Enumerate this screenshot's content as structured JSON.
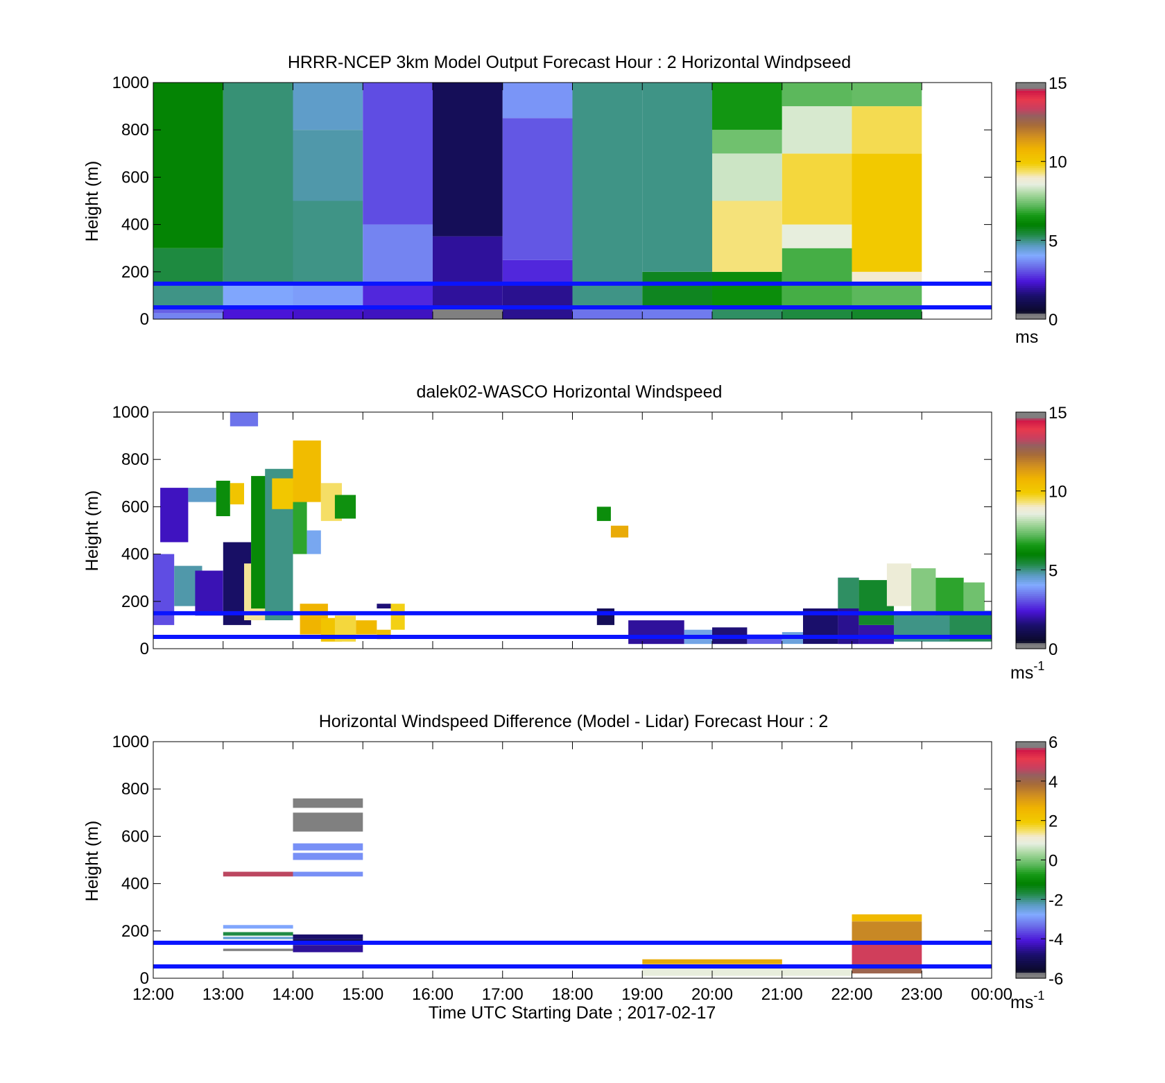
{
  "chart_data": [
    {
      "type": "heatmap",
      "title": "HRRR-NCEP 3km Model Output   Forecast Hour : 2 Horizontal Windpseed",
      "ylabel": "Height (m)",
      "xlabel": "",
      "xlim": [
        12,
        24
      ],
      "ylim": [
        0,
        1000
      ],
      "yticks": [
        "0",
        "200",
        "400",
        "600",
        "800",
        "1000"
      ],
      "colorbar": {
        "min": 0,
        "max": 15,
        "ticks": [
          "0",
          "5",
          "10",
          "15"
        ],
        "unit_base": "ms",
        "unit_sup": ""
      },
      "reference_lines_m": [
        50,
        150
      ],
      "reference_line_color": "#0a14ff",
      "cells": [
        {
          "x0": 12,
          "x1": 13,
          "y0": 0,
          "y1": 25,
          "v": 3.6
        },
        {
          "x0": 12,
          "x1": 13,
          "y0": 25,
          "y1": 50,
          "v": 3.2
        },
        {
          "x0": 12,
          "x1": 13,
          "y0": 50,
          "y1": 150,
          "v": 5.0
        },
        {
          "x0": 12,
          "x1": 13,
          "y0": 150,
          "y1": 300,
          "v": 5.4
        },
        {
          "x0": 12,
          "x1": 13,
          "y0": 300,
          "y1": 1000,
          "v": 6.1
        },
        {
          "x0": 13,
          "x1": 14,
          "y0": 0,
          "y1": 50,
          "v": 2.4
        },
        {
          "x0": 13,
          "x1": 14,
          "y0": 50,
          "y1": 150,
          "v": 4.0
        },
        {
          "x0": 13,
          "x1": 14,
          "y0": 150,
          "y1": 1000,
          "v": 5.1
        },
        {
          "x0": 14,
          "x1": 15,
          "y0": 0,
          "y1": 50,
          "v": 2.3
        },
        {
          "x0": 14,
          "x1": 15,
          "y0": 50,
          "y1": 150,
          "v": 3.9
        },
        {
          "x0": 14,
          "x1": 15,
          "y0": 150,
          "y1": 500,
          "v": 5.0
        },
        {
          "x0": 14,
          "x1": 15,
          "y0": 500,
          "y1": 800,
          "v": 4.8
        },
        {
          "x0": 14,
          "x1": 15,
          "y0": 800,
          "y1": 1000,
          "v": 4.6
        },
        {
          "x0": 15,
          "x1": 16,
          "y0": 0,
          "y1": 50,
          "v": 2.2
        },
        {
          "x0": 15,
          "x1": 16,
          "y0": 50,
          "y1": 150,
          "v": 2.6
        },
        {
          "x0": 15,
          "x1": 16,
          "y0": 150,
          "y1": 400,
          "v": 3.6
        },
        {
          "x0": 15,
          "x1": 16,
          "y0": 400,
          "y1": 1000,
          "v": 3.0
        },
        {
          "x0": 16,
          "x1": 17,
          "y0": 0,
          "y1": 50,
          "v": 0.3
        },
        {
          "x0": 16,
          "x1": 17,
          "y0": 50,
          "y1": 350,
          "v": 1.9
        },
        {
          "x0": 16,
          "x1": 17,
          "y0": 350,
          "y1": 1000,
          "v": 1.2
        },
        {
          "x0": 17,
          "x1": 18,
          "y0": 0,
          "y1": 150,
          "v": 1.8
        },
        {
          "x0": 17,
          "x1": 18,
          "y0": 150,
          "y1": 250,
          "v": 2.6
        },
        {
          "x0": 17,
          "x1": 18,
          "y0": 250,
          "y1": 850,
          "v": 3.1
        },
        {
          "x0": 17,
          "x1": 18,
          "y0": 850,
          "y1": 1000,
          "v": 3.8
        },
        {
          "x0": 18,
          "x1": 19,
          "y0": 0,
          "y1": 50,
          "v": 3.4
        },
        {
          "x0": 18,
          "x1": 19,
          "y0": 50,
          "y1": 1000,
          "v": 5.0
        },
        {
          "x0": 19,
          "x1": 20,
          "y0": 0,
          "y1": 50,
          "v": 3.5
        },
        {
          "x0": 19,
          "x1": 20,
          "y0": 50,
          "y1": 200,
          "v": 5.7
        },
        {
          "x0": 19,
          "x1": 20,
          "y0": 200,
          "y1": 1000,
          "v": 5.0
        },
        {
          "x0": 20,
          "x1": 21,
          "y0": 0,
          "y1": 50,
          "v": 5.2
        },
        {
          "x0": 20,
          "x1": 21,
          "y0": 50,
          "y1": 200,
          "v": 6.3
        },
        {
          "x0": 20,
          "x1": 21,
          "y0": 200,
          "y1": 500,
          "v": 9.3
        },
        {
          "x0": 20,
          "x1": 21,
          "y0": 500,
          "y1": 700,
          "v": 8.3
        },
        {
          "x0": 20,
          "x1": 21,
          "y0": 700,
          "y1": 800,
          "v": 7.4
        },
        {
          "x0": 20,
          "x1": 21,
          "y0": 800,
          "y1": 1000,
          "v": 6.5
        },
        {
          "x0": 21,
          "x1": 22,
          "y0": 0,
          "y1": 50,
          "v": 5.4
        },
        {
          "x0": 21,
          "x1": 22,
          "y0": 50,
          "y1": 300,
          "v": 7.0
        },
        {
          "x0": 21,
          "x1": 22,
          "y0": 300,
          "y1": 400,
          "v": 8.6
        },
        {
          "x0": 21,
          "x1": 22,
          "y0": 400,
          "y1": 700,
          "v": 9.6
        },
        {
          "x0": 21,
          "x1": 22,
          "y0": 700,
          "y1": 900,
          "v": 8.4
        },
        {
          "x0": 21,
          "x1": 22,
          "y0": 900,
          "y1": 1000,
          "v": 7.2
        },
        {
          "x0": 22,
          "x1": 23,
          "y0": 0,
          "y1": 50,
          "v": 5.6
        },
        {
          "x0": 22,
          "x1": 23,
          "y0": 50,
          "y1": 150,
          "v": 7.2
        },
        {
          "x0": 22,
          "x1": 23,
          "y0": 150,
          "y1": 200,
          "v": 9.0
        },
        {
          "x0": 22,
          "x1": 23,
          "y0": 200,
          "y1": 700,
          "v": 10.0
        },
        {
          "x0": 22,
          "x1": 23,
          "y0": 700,
          "y1": 900,
          "v": 9.5
        },
        {
          "x0": 22,
          "x1": 23,
          "y0": 900,
          "y1": 1000,
          "v": 7.3
        }
      ]
    },
    {
      "type": "heatmap",
      "title": "dalek02-WASCO  Horizontal Windspeed",
      "ylabel": "Height (m)",
      "xlabel": "",
      "xlim": [
        12,
        24
      ],
      "ylim": [
        0,
        1000
      ],
      "yticks": [
        "0",
        "200",
        "400",
        "600",
        "800",
        "1000"
      ],
      "colorbar": {
        "min": 0,
        "max": 15,
        "ticks": [
          "0",
          "5",
          "10",
          "15"
        ],
        "unit_base": "ms",
        "unit_sup": "-1"
      },
      "reference_lines_m": [
        50,
        150
      ],
      "reference_line_color": "#0a14ff",
      "cells": [
        {
          "x0": 12.0,
          "x1": 12.3,
          "y0": 100,
          "y1": 400,
          "v": 3.0
        },
        {
          "x0": 12.1,
          "x1": 12.5,
          "y0": 450,
          "y1": 680,
          "v": 2.2
        },
        {
          "x0": 12.3,
          "x1": 12.7,
          "y0": 180,
          "y1": 350,
          "v": 4.8
        },
        {
          "x0": 12.5,
          "x1": 12.9,
          "y0": 620,
          "y1": 680,
          "v": 4.6
        },
        {
          "x0": 12.6,
          "x1": 13.0,
          "y0": 140,
          "y1": 330,
          "v": 2.1
        },
        {
          "x0": 12.9,
          "x1": 13.1,
          "y0": 560,
          "y1": 710,
          "v": 6.3
        },
        {
          "x0": 13.0,
          "x1": 13.4,
          "y0": 100,
          "y1": 450,
          "v": 1.4
        },
        {
          "x0": 13.1,
          "x1": 13.3,
          "y0": 610,
          "y1": 700,
          "v": 10.2
        },
        {
          "x0": 13.1,
          "x1": 13.5,
          "y0": 940,
          "y1": 1000,
          "v": 3.4
        },
        {
          "x0": 13.3,
          "x1": 13.6,
          "y0": 120,
          "y1": 360,
          "v": 9.2
        },
        {
          "x0": 13.4,
          "x1": 13.7,
          "y0": 170,
          "y1": 730,
          "v": 6.2
        },
        {
          "x0": 13.6,
          "x1": 14.0,
          "y0": 120,
          "y1": 760,
          "v": 5.0
        },
        {
          "x0": 13.7,
          "x1": 14.0,
          "y0": 590,
          "y1": 720,
          "v": 10.1
        },
        {
          "x0": 14.0,
          "x1": 14.2,
          "y0": 400,
          "y1": 680,
          "v": 6.8
        },
        {
          "x0": 14.0,
          "x1": 14.4,
          "y0": 620,
          "y1": 880,
          "v": 10.5
        },
        {
          "x0": 14.1,
          "x1": 14.5,
          "y0": 60,
          "y1": 190,
          "v": 10.8
        },
        {
          "x0": 14.4,
          "x1": 14.7,
          "y0": 540,
          "y1": 700,
          "v": 9.4
        },
        {
          "x0": 14.2,
          "x1": 14.4,
          "y0": 400,
          "y1": 500,
          "v": 4.2
        },
        {
          "x0": 14.4,
          "x1": 14.7,
          "y0": 30,
          "y1": 130,
          "v": 10.2
        },
        {
          "x0": 14.6,
          "x1": 14.9,
          "y0": 550,
          "y1": 650,
          "v": 6.4
        },
        {
          "x0": 14.6,
          "x1": 14.9,
          "y0": 30,
          "y1": 140,
          "v": 9.6
        },
        {
          "x0": 14.9,
          "x1": 15.2,
          "y0": 60,
          "y1": 120,
          "v": 10.6
        },
        {
          "x0": 15.2,
          "x1": 15.4,
          "y0": 40,
          "y1": 80,
          "v": 10.4
        },
        {
          "x0": 15.2,
          "x1": 15.4,
          "y0": 170,
          "y1": 190,
          "v": 1.6
        },
        {
          "x0": 15.4,
          "x1": 15.6,
          "y0": 80,
          "y1": 190,
          "v": 9.8
        },
        {
          "x0": 18.35,
          "x1": 18.55,
          "y0": 540,
          "y1": 600,
          "v": 6.3
        },
        {
          "x0": 18.55,
          "x1": 18.8,
          "y0": 470,
          "y1": 520,
          "v": 11.0
        },
        {
          "x0": 18.35,
          "x1": 18.6,
          "y0": 100,
          "y1": 170,
          "v": 1.2
        },
        {
          "x0": 18.8,
          "x1": 19.6,
          "y0": 20,
          "y1": 120,
          "v": 1.9
        },
        {
          "x0": 19.6,
          "x1": 20.0,
          "y0": 20,
          "y1": 80,
          "v": 4.3
        },
        {
          "x0": 20.0,
          "x1": 20.5,
          "y0": 20,
          "y1": 90,
          "v": 1.6
        },
        {
          "x0": 20.5,
          "x1": 21.0,
          "y0": 20,
          "y1": 60,
          "v": 3.2
        },
        {
          "x0": 21.0,
          "x1": 21.3,
          "y0": 20,
          "y1": 70,
          "v": 4.4
        },
        {
          "x0": 21.3,
          "x1": 21.8,
          "y0": 20,
          "y1": 170,
          "v": 1.5
        },
        {
          "x0": 21.8,
          "x1": 22.1,
          "y0": 20,
          "y1": 300,
          "v": 1.8
        },
        {
          "x0": 21.8,
          "x1": 22.1,
          "y0": 170,
          "y1": 300,
          "v": 5.2
        },
        {
          "x0": 22.1,
          "x1": 22.6,
          "y0": 20,
          "y1": 100,
          "v": 2.0
        },
        {
          "x0": 22.1,
          "x1": 22.6,
          "y0": 100,
          "y1": 290,
          "v": 5.6
        },
        {
          "x0": 22.5,
          "x1": 22.85,
          "y0": 180,
          "y1": 360,
          "v": 8.8
        },
        {
          "x0": 22.85,
          "x1": 23.2,
          "y0": 150,
          "y1": 340,
          "v": 7.6
        },
        {
          "x0": 22.6,
          "x1": 23.4,
          "y0": 30,
          "y1": 150,
          "v": 5.0
        },
        {
          "x0": 23.2,
          "x1": 23.6,
          "y0": 140,
          "y1": 300,
          "v": 6.8
        },
        {
          "x0": 23.4,
          "x1": 24.0,
          "y0": 30,
          "y1": 160,
          "v": 5.3
        },
        {
          "x0": 23.6,
          "x1": 23.9,
          "y0": 150,
          "y1": 280,
          "v": 7.4
        }
      ]
    },
    {
      "type": "heatmap",
      "title": "Horizontal Windspeed Difference (Model - Lidar) Forecast Hour : 2",
      "ylabel": "Height (m)",
      "xlabel": "Time UTC  Starting Date ; 2017-02-17",
      "xlim": [
        12,
        24
      ],
      "ylim": [
        0,
        1000
      ],
      "yticks": [
        "0",
        "200",
        "400",
        "600",
        "800",
        "1000"
      ],
      "xticks": [
        "12:00",
        "13:00",
        "14:00",
        "15:00",
        "16:00",
        "17:00",
        "18:00",
        "19:00",
        "20:00",
        "21:00",
        "22:00",
        "23:00",
        "00:00"
      ],
      "colorbar": {
        "min": -6,
        "max": 6,
        "ticks": [
          "-6",
          "-4",
          "-2",
          "0",
          "2",
          "4",
          "6"
        ],
        "unit_base": "ms",
        "unit_sup": "-1"
      },
      "reference_lines_m": [
        50,
        150
      ],
      "reference_line_color": "#0a14ff",
      "cells": [
        {
          "x0": 13,
          "x1": 14,
          "y0": 430,
          "y1": 450,
          "v": 4.6
        },
        {
          "x0": 13,
          "x1": 14,
          "y0": 210,
          "y1": 225,
          "v": -2.8
        },
        {
          "x0": 13,
          "x1": 14,
          "y0": 180,
          "y1": 195,
          "v": -1.7
        },
        {
          "x0": 13,
          "x1": 14,
          "y0": 165,
          "y1": 175,
          "v": -2.4
        },
        {
          "x0": 13,
          "x1": 14,
          "y0": 115,
          "y1": 125,
          "v": 6.0
        },
        {
          "x0": 14,
          "x1": 15,
          "y0": 720,
          "y1": 760,
          "v": 6.0
        },
        {
          "x0": 14,
          "x1": 15,
          "y0": 620,
          "y1": 700,
          "v": 6.0
        },
        {
          "x0": 14,
          "x1": 15,
          "y0": 540,
          "y1": 570,
          "v": -3.0
        },
        {
          "x0": 14,
          "x1": 15,
          "y0": 500,
          "y1": 530,
          "v": -3.0
        },
        {
          "x0": 14,
          "x1": 15,
          "y0": 430,
          "y1": 450,
          "v": -3.0
        },
        {
          "x0": 14,
          "x1": 15,
          "y0": 165,
          "y1": 185,
          "v": -4.8
        },
        {
          "x0": 14,
          "x1": 15,
          "y0": 140,
          "y1": 165,
          "v": -5.2
        },
        {
          "x0": 14,
          "x1": 15,
          "y0": 110,
          "y1": 140,
          "v": -4.5
        },
        {
          "x0": 19,
          "x1": 21,
          "y0": 60,
          "y1": 80,
          "v": 2.8
        },
        {
          "x0": 19,
          "x1": 21,
          "y0": 40,
          "y1": 60,
          "v": 1.5
        },
        {
          "x0": 19,
          "x1": 21,
          "y0": 10,
          "y1": 40,
          "v": 0.9
        },
        {
          "x0": 21,
          "x1": 22,
          "y0": 10,
          "y1": 40,
          "v": 0.9
        },
        {
          "x0": 22,
          "x1": 23,
          "y0": 240,
          "y1": 270,
          "v": 2.5
        },
        {
          "x0": 22,
          "x1": 23,
          "y0": 150,
          "y1": 240,
          "v": 3.4
        },
        {
          "x0": 22,
          "x1": 23,
          "y0": 60,
          "y1": 150,
          "v": 4.8
        },
        {
          "x0": 22,
          "x1": 23,
          "y0": 20,
          "y1": 60,
          "v": 4.1
        }
      ]
    }
  ]
}
